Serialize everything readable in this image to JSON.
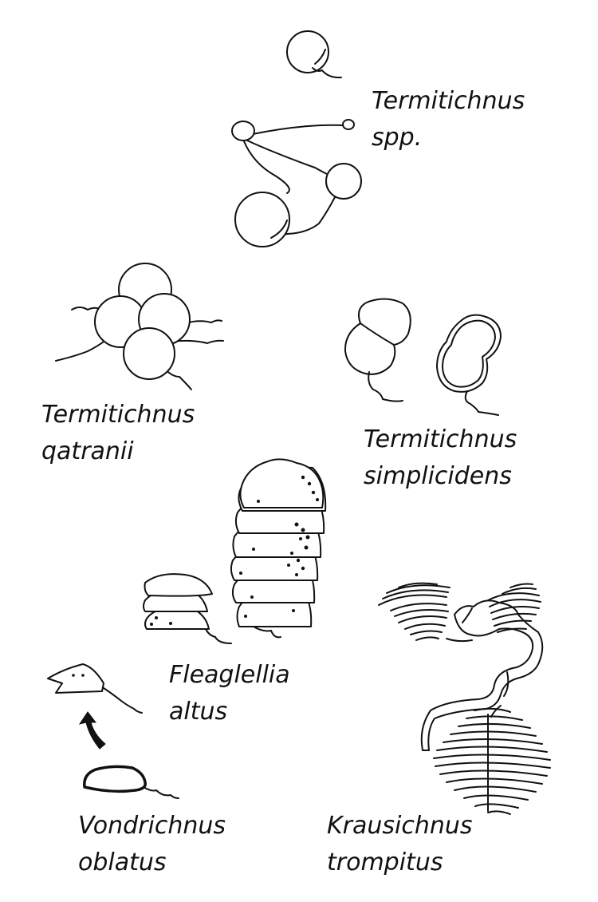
{
  "figure": {
    "ink_color": "#111111",
    "background_color": "#ffffff",
    "groups": [
      {
        "id": "termitichnus-spp",
        "line1": "Termitichnus",
        "line2": "spp."
      },
      {
        "id": "termitichnus-qatranii",
        "line1": "Termitichnus",
        "line2": "qatranii"
      },
      {
        "id": "termitichnus-simplicidens",
        "line1": "Termitichnus",
        "line2": "simplicidens"
      },
      {
        "id": "fleaglellia-altus",
        "line1": "Fleaglellia",
        "line2": "altus"
      },
      {
        "id": "vondrichnus-oblatus",
        "line1": "Vondrichnus",
        "line2": "oblatus"
      },
      {
        "id": "krausichnus-trompitus",
        "line1": "Krausichnus",
        "line2": "trompitus"
      }
    ]
  }
}
